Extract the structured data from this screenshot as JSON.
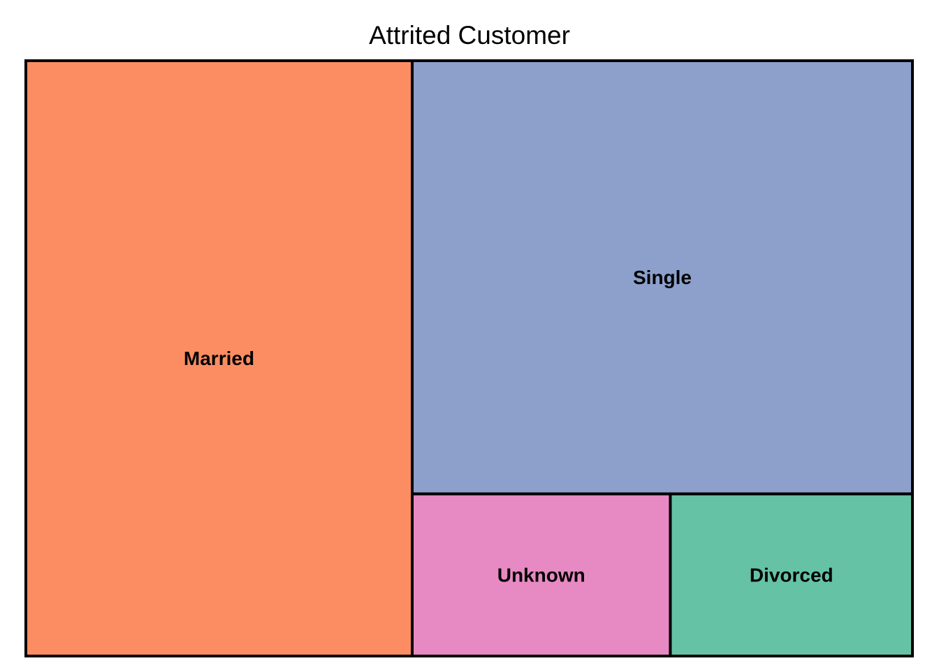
{
  "chart_data": {
    "type": "treemap",
    "title": "Attrited Customer",
    "categories": [
      "Married",
      "Single",
      "Unknown",
      "Divorced"
    ],
    "values": [
      709,
      668,
      129,
      121
    ],
    "colors": [
      "#FC8D62",
      "#8DA0CB",
      "#E78AC3",
      "#66C2A5"
    ],
    "border_color": "#000000"
  }
}
